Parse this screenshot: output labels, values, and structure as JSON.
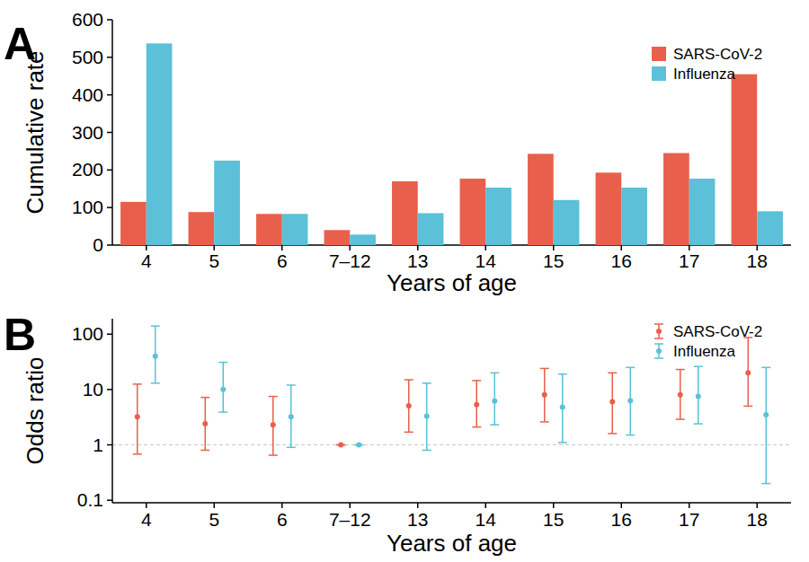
{
  "chart_data": [
    {
      "type": "bar",
      "title": "A",
      "categories": [
        "4",
        "5",
        "6",
        "7–12",
        "13",
        "14",
        "15",
        "16",
        "17",
        "18"
      ],
      "series": [
        {
          "name": "SARS-CoV-2",
          "color": "#e8604c",
          "values": [
            115,
            88,
            83,
            40,
            170,
            177,
            243,
            193,
            245,
            455
          ]
        },
        {
          "name": "Influenza",
          "color": "#5bc0d8",
          "values": [
            537,
            225,
            83,
            28,
            85,
            153,
            120,
            153,
            177,
            90
          ]
        }
      ],
      "x_label": "Years of age",
      "y_label": "Cumulative rate",
      "ylim": [
        0,
        600
      ],
      "yticks": [
        0,
        100,
        200,
        300,
        400,
        500,
        600
      ],
      "grid": false,
      "legend": "top-right"
    },
    {
      "type": "errorbar",
      "title": "B",
      "categories": [
        "4",
        "5",
        "6",
        "7–12",
        "13",
        "14",
        "15",
        "16",
        "17",
        "18"
      ],
      "series": [
        {
          "name": "SARS-CoV-2",
          "color": "#e8604c",
          "marker": "circle",
          "values": [
            3.2,
            2.4,
            2.3,
            1,
            5.1,
            5.3,
            8,
            6,
            8,
            20
          ],
          "lower": [
            0.68,
            0.8,
            0.65,
            1,
            1.7,
            2.1,
            2.6,
            1.6,
            2.9,
            5
          ],
          "upper": [
            12.5,
            7.2,
            7.5,
            1,
            15,
            14.5,
            24,
            20,
            23,
            87
          ]
        },
        {
          "name": "Influenza",
          "color": "#5bc0d8",
          "marker": "circle",
          "values": [
            40,
            10,
            3.2,
            1,
            3.3,
            6.2,
            4.8,
            6.3,
            7.5,
            3.5
          ],
          "lower": [
            13,
            3.9,
            0.9,
            1,
            0.8,
            2.3,
            1.1,
            1.5,
            2.4,
            0.2
          ],
          "upper": [
            140,
            31,
            12,
            1,
            13,
            20,
            19,
            25,
            26,
            25
          ]
        }
      ],
      "x_label": "Years of age",
      "y_label": "Odds ratio",
      "log": "y",
      "ylim": [
        0.09,
        190
      ],
      "yticks": [
        0.1,
        1,
        10,
        100
      ],
      "reference_line": 1,
      "grid": false,
      "legend": "top-right"
    }
  ]
}
